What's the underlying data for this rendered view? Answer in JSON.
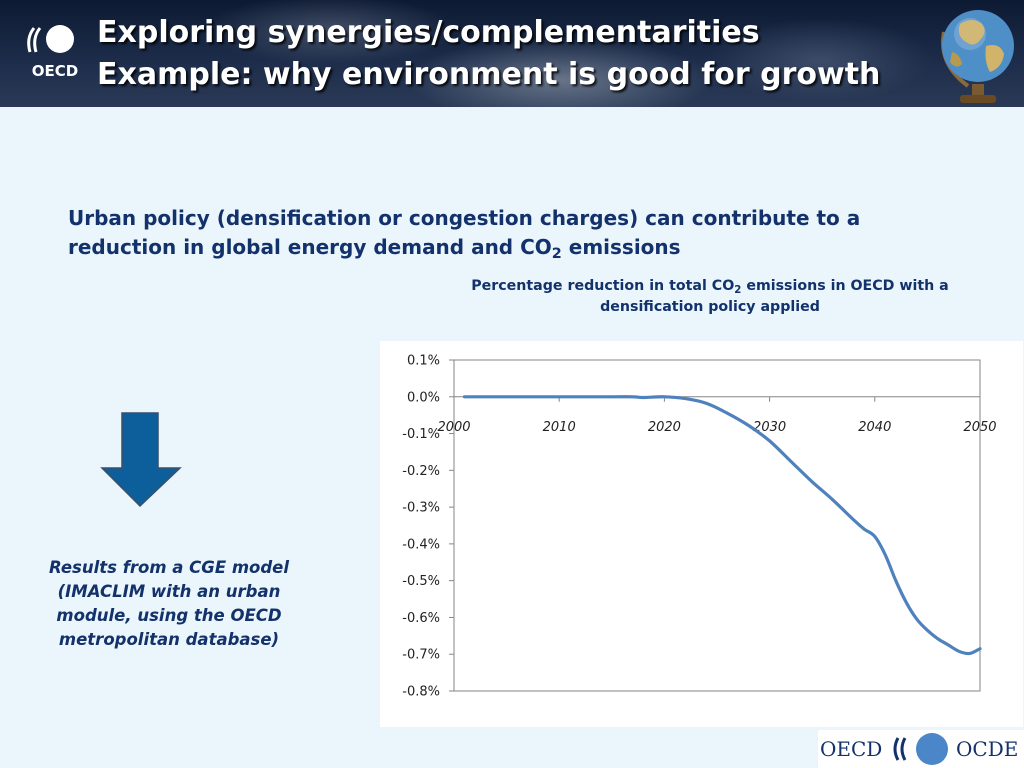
{
  "header": {
    "title_line1": "Exploring synergies/complementarities",
    "title_line2": "Example: why environment is good for growth",
    "logo_text": "OECD"
  },
  "subtitle": {
    "text_before_sub": "Urban policy (densification or congestion charges) can contribute to a reduction in global energy demand and CO",
    "sub": "2",
    "text_after_sub": " emissions"
  },
  "note": "Results from a CGE model (IMACLIM with an urban module, using the OECD metropolitan database)",
  "footer": {
    "left": "OECD",
    "right": "OCDE"
  },
  "colors": {
    "heading": "#13316b",
    "line": "#4f81bd",
    "arrow": "#0d5f9c",
    "background": "#eaf6fc"
  },
  "chart_data": {
    "type": "line",
    "title_before_sub": "Percentage reduction in total CO",
    "title_sub": "2",
    "title_after_sub": " emissions in OECD with a densification policy applied",
    "xlabel": "",
    "ylabel": "",
    "xlim": [
      2000,
      2050
    ],
    "ylim": [
      -0.8,
      0.1
    ],
    "x_ticks": [
      2000,
      2010,
      2020,
      2030,
      2040,
      2050
    ],
    "y_ticks": [
      0.1,
      0.0,
      -0.1,
      -0.2,
      -0.3,
      -0.4,
      -0.5,
      -0.6,
      -0.7,
      -0.8
    ],
    "y_tick_labels": [
      "0.1%",
      "0.0%",
      "-0.1%",
      "-0.2%",
      "-0.3%",
      "-0.4%",
      "-0.5%",
      "-0.6%",
      "-0.7%",
      "-0.8%"
    ],
    "x_axis_position": 0.0,
    "grid": false,
    "legend": "none",
    "series": [
      {
        "x": [
          2001,
          2005,
          2010,
          2015,
          2017,
          2018,
          2020,
          2022,
          2024,
          2026,
          2028,
          2030,
          2032,
          2034,
          2036,
          2038,
          2039,
          2040,
          2041,
          2042,
          2043,
          2044,
          2045,
          2046,
          2047,
          2048,
          2049,
          2050
        ],
        "values": [
          0.0,
          0.0,
          0.0,
          0.0,
          0.0,
          -0.002,
          0.0,
          -0.005,
          -0.018,
          -0.045,
          -0.078,
          -0.12,
          -0.175,
          -0.23,
          -0.28,
          -0.335,
          -0.36,
          -0.38,
          -0.43,
          -0.5,
          -0.56,
          -0.605,
          -0.635,
          -0.658,
          -0.675,
          -0.692,
          -0.698,
          -0.685
        ]
      }
    ]
  }
}
